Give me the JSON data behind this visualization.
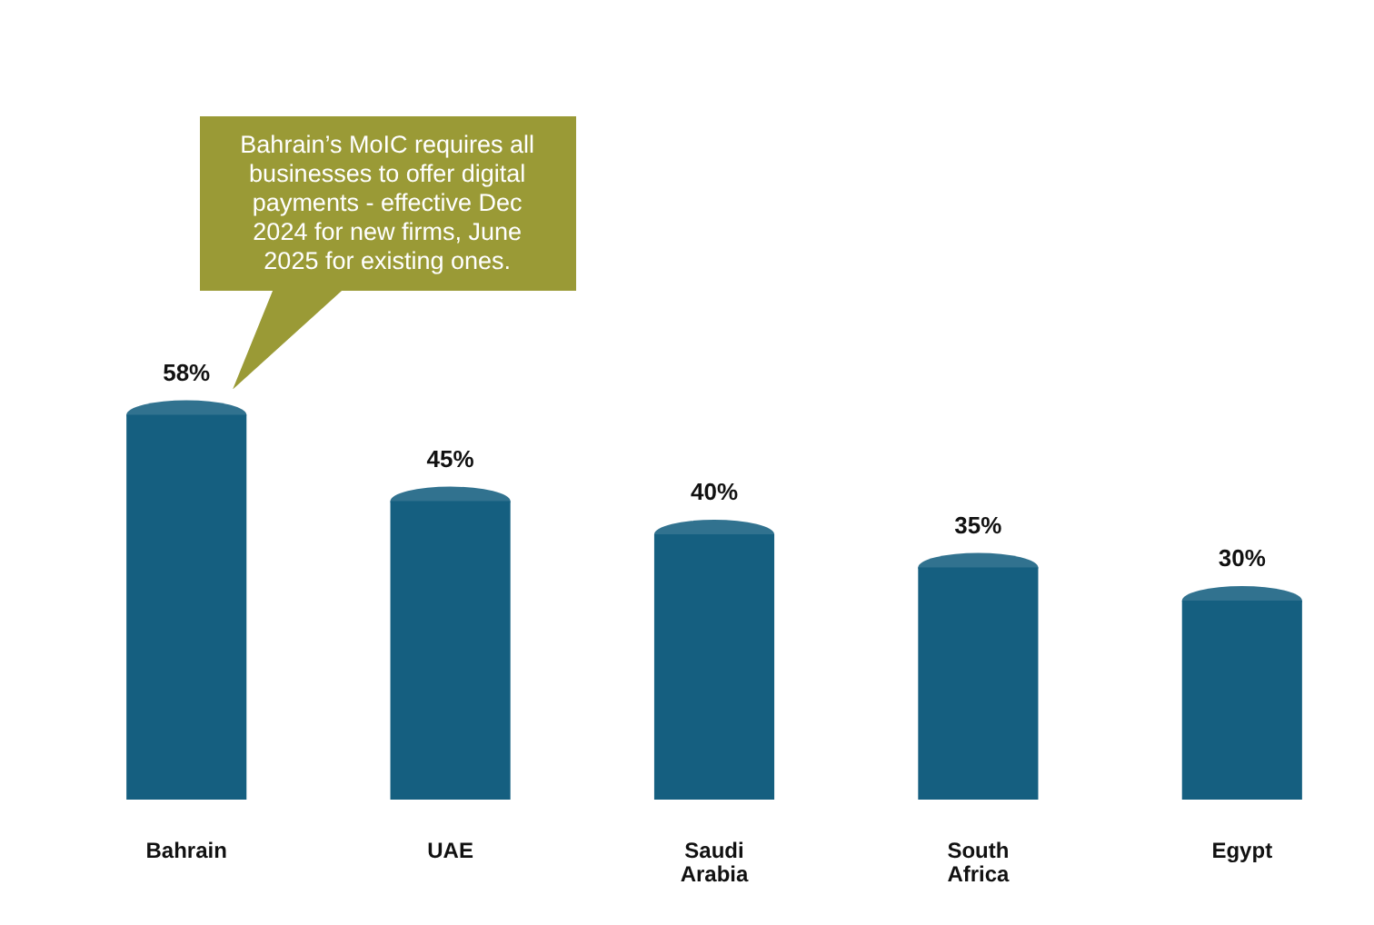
{
  "chart_data": {
    "type": "bar",
    "categories": [
      "Bahrain",
      "UAE",
      "Saudi Arabia",
      "South Africa",
      "Egypt"
    ],
    "values": [
      58,
      45,
      40,
      35,
      30
    ],
    "value_labels": [
      "58%",
      "45%",
      "40%",
      "35%",
      "30%"
    ],
    "color": "#155f80",
    "tick_labels": "x",
    "grid": false,
    "legend": false,
    "annotations": [
      "Bahrain’s MoIC requires all businesses to offer digital payments - effective Dec 2024 for new firms, June 2025 for existing ones."
    ]
  }
}
